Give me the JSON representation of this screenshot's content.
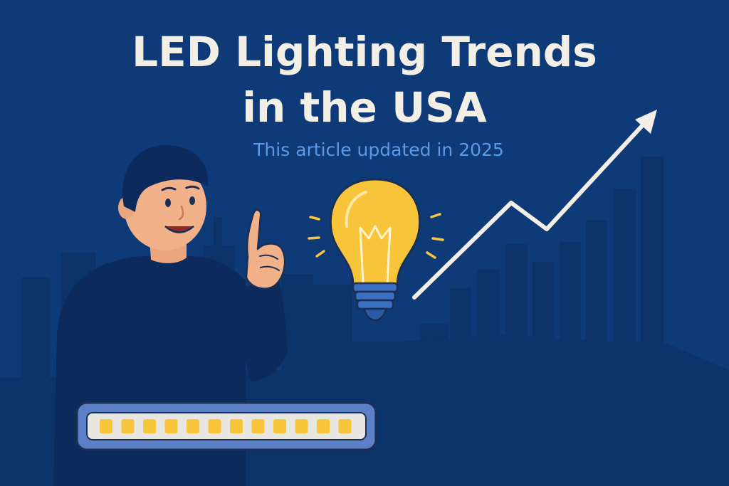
{
  "title": {
    "line1": "LED Lighting Trends",
    "line2": "in the USA"
  },
  "subtitle": "This article updated in 2025",
  "colors": {
    "background": "#0f3a78",
    "skyline": "#0c336a",
    "title": "#f4efe6",
    "subtitle": "#5b9be6",
    "bulb": "#f7c43a",
    "bulb_base": "#3a6fc4",
    "led_lights": "#f7c43a",
    "arrow": "#f4efe6"
  },
  "icons": [
    "light-bulb-icon",
    "trend-arrow-icon",
    "led-strip-icon"
  ],
  "led_strip": {
    "segments": 12
  }
}
